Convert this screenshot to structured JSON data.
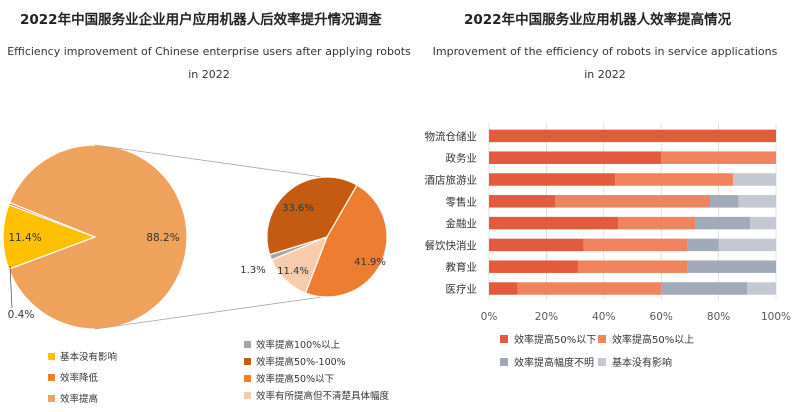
{
  "colors": {
    "yellow": "#FFC000",
    "light_orange": "#EFA25C",
    "dark_orange": "#C55A11",
    "gray": "#A5A5A5",
    "mid_orange": "#ED7D31",
    "peach": "#F8CBAD",
    "red_orange": "#E25B3C",
    "salmon": "#EE835E",
    "slate": "#A1AAB8",
    "light_slate": "#C3C8D3",
    "axis_text": "#595959"
  },
  "left_chart": {
    "title_cn": "2022年中国服务业企业用户应用机器人后效率提升情况调查",
    "title_en": "Efficiency improvement of Chinese enterprise users after applying robots",
    "title_en_2": "in 2022",
    "chart_data": {
      "type": "pie",
      "title": "2022年中国服务业企业用户应用机器人后效率提升情况调查",
      "main_pie": {
        "slices": [
          {
            "name": "基本没有影响",
            "value": 11.4,
            "label": "11.4%",
            "color": "#FFC000"
          },
          {
            "name": "效率降低",
            "value": 0.4,
            "label": "0.4%",
            "color": "#ED7D31"
          },
          {
            "name": "效率提高",
            "value": 88.2,
            "label": "88.2%",
            "color": "#EFA25C"
          }
        ]
      },
      "breakdown_pie": {
        "of": "效率提高",
        "slices": [
          {
            "name": "效率提高100%以上",
            "value": 1.3,
            "label": "1.3%",
            "color": "#A5A5A5"
          },
          {
            "name": "效率提高50%-100%",
            "value": 33.6,
            "label": "33.6%",
            "color": "#C55A11"
          },
          {
            "name": "效率提高50%以下",
            "value": 41.9,
            "label": "41.9%",
            "color": "#ED7D31"
          },
          {
            "name": "效率有所提高但不清楚具体幅度",
            "value": 11.4,
            "label": "11.4%",
            "color": "#F8CBAD"
          }
        ]
      }
    },
    "legend_left": [
      {
        "label": "基本没有影响",
        "color": "#FFC000"
      },
      {
        "label": "效率降低",
        "color": "#ED7D31"
      },
      {
        "label": "效率提高",
        "color": "#EFA25C"
      }
    ],
    "legend_right": [
      {
        "label": "效率提高100%以上",
        "color": "#A5A5A5"
      },
      {
        "label": "效率提高50%-100%",
        "color": "#C55A11"
      },
      {
        "label": "效率提高50%以下",
        "color": "#ED7D31"
      },
      {
        "label": "效率有所提高但不清楚具体幅度",
        "color": "#F8CBAD"
      }
    ]
  },
  "right_chart": {
    "title_cn": "2022年中国服务业应用机器人效率提高情况",
    "title_en": "Improvement of the efficiency of robots in service applications",
    "title_en_2": "in 2022",
    "chart_data": {
      "type": "bar",
      "orientation": "horizontal",
      "stacked": "percent",
      "title": "2022年中国服务业应用机器人效率提高情况",
      "categories": [
        "物流仓储业",
        "政务业",
        "酒店旅游业",
        "零售业",
        "金融业",
        "餐饮快消业",
        "教育业",
        "医疗业"
      ],
      "series": [
        {
          "name": "效率提高50%以下",
          "color": "#E25B3C",
          "values": [
            100,
            60,
            44,
            23,
            45,
            33,
            31,
            10
          ]
        },
        {
          "name": "效率提高50%以上",
          "color": "#EE835E",
          "values": [
            0,
            40,
            41,
            54,
            27,
            36,
            38,
            50
          ]
        },
        {
          "name": "效率提高幅度不明",
          "color": "#A1AAB8",
          "values": [
            0,
            0,
            0,
            10,
            19,
            11,
            31,
            30
          ]
        },
        {
          "name": "基本没有影响",
          "color": "#C3C8D3",
          "values": [
            0,
            0,
            15,
            13,
            9,
            20,
            0,
            10
          ]
        }
      ],
      "xlim": [
        0,
        100
      ],
      "x_ticks": [
        "0%",
        "20%",
        "40%",
        "60%",
        "80%",
        "100%"
      ],
      "grid": true,
      "legend_position": "bottom"
    }
  }
}
